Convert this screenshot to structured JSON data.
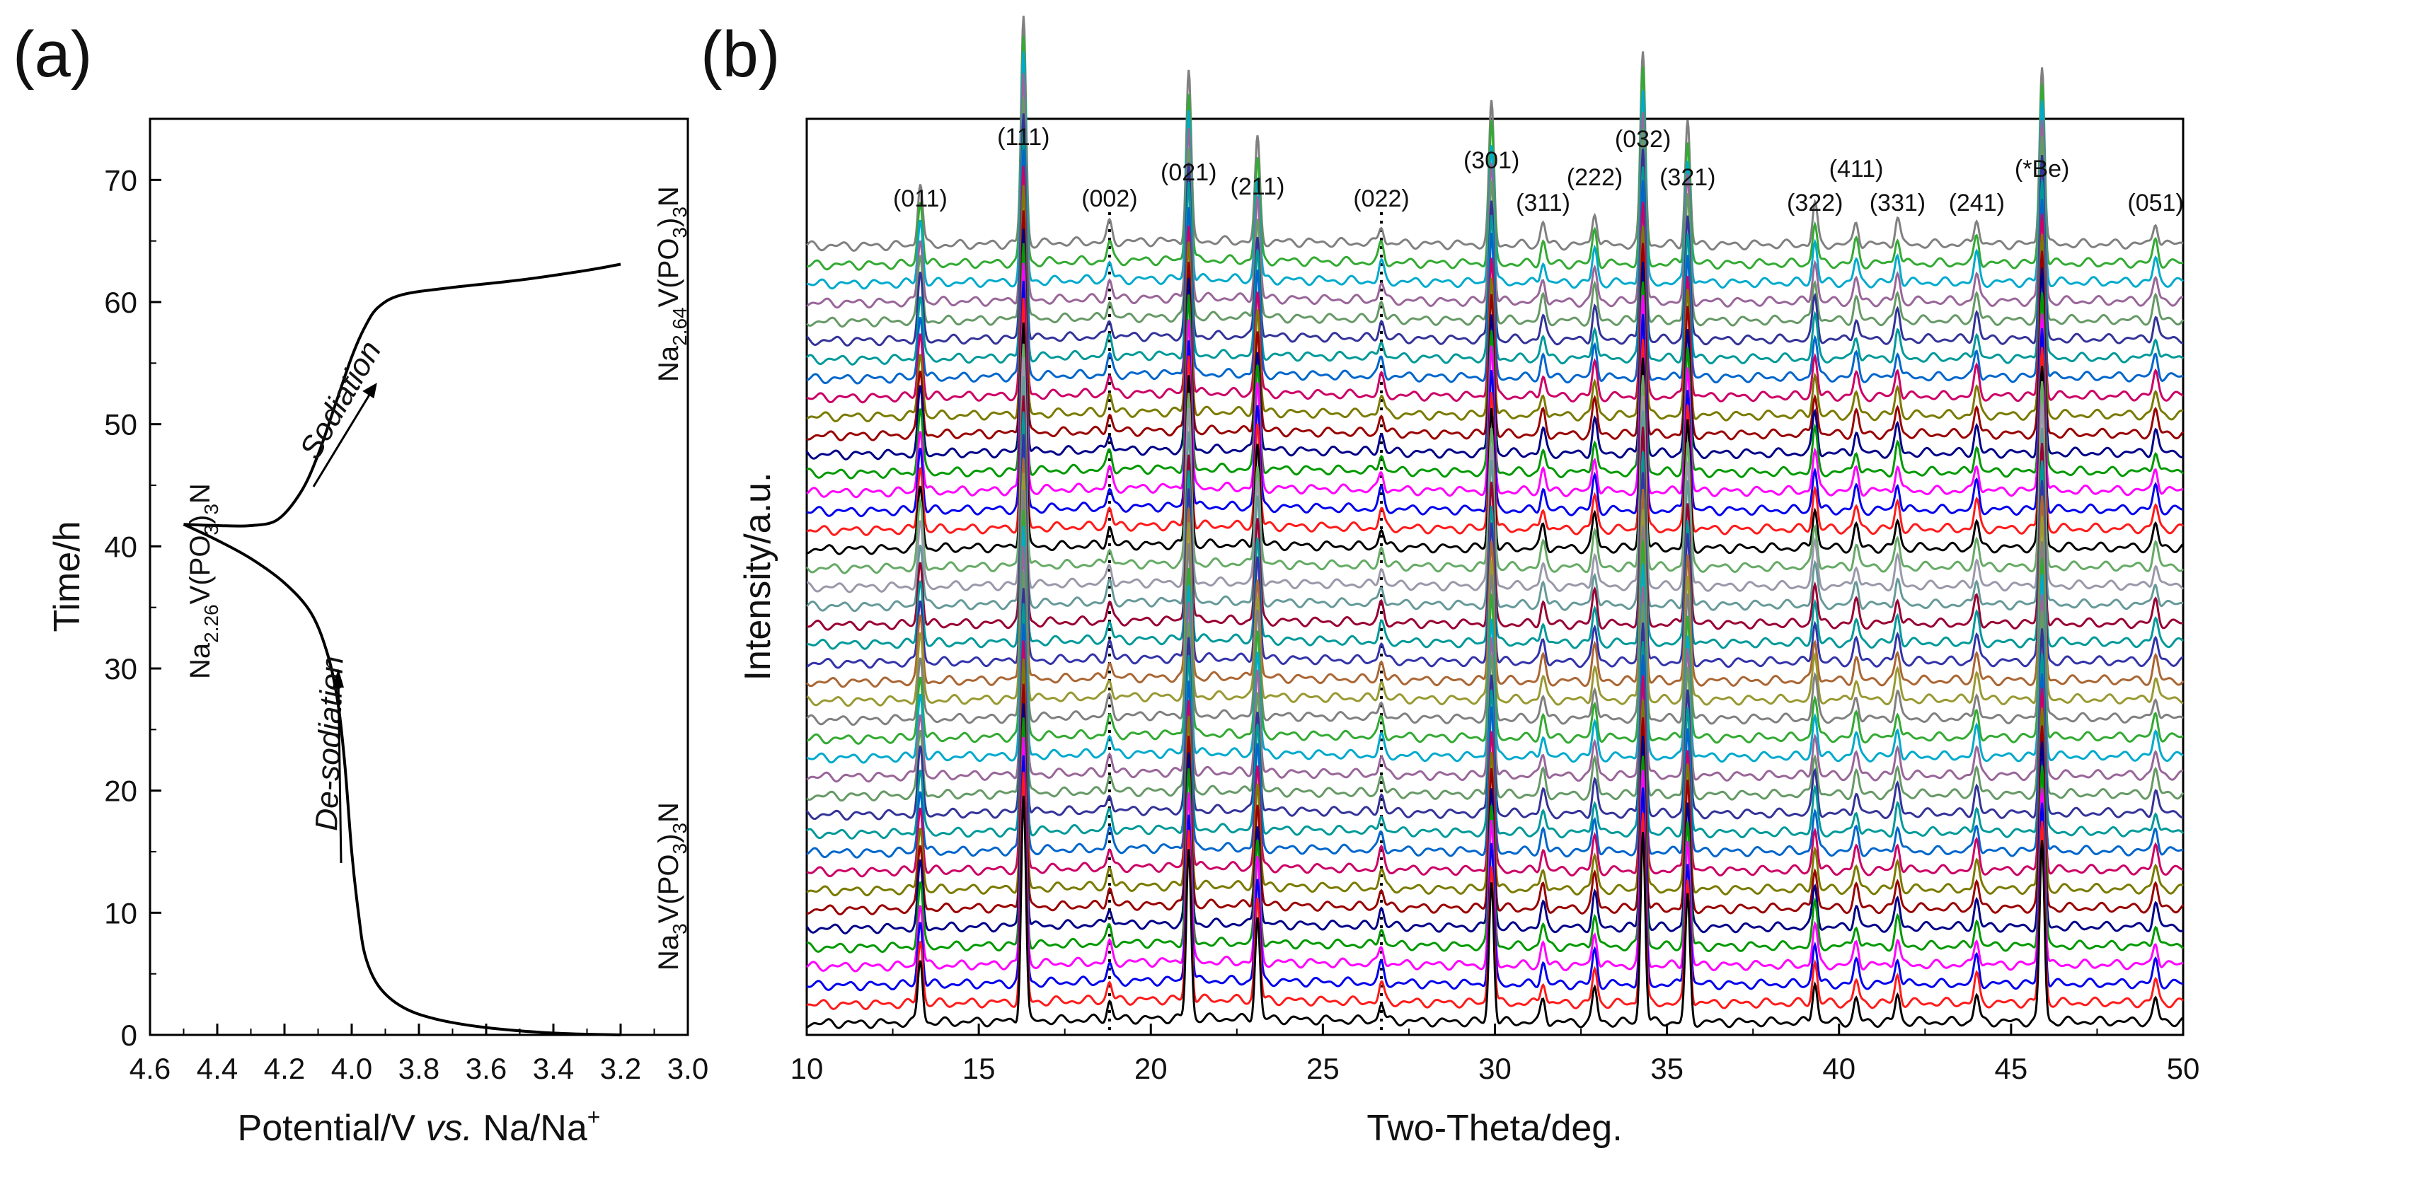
{
  "panels": {
    "a": {
      "label": "(a)",
      "xlabel": {
        "prefix": "Potential/V ",
        "italic": "vs.",
        "suffix": " Na/Na",
        "sup": "+"
      },
      "ylabel": "Time/h",
      "annotations": {
        "sodiation": "Sodiation",
        "desodiation": "De-sodiation",
        "na226": {
          "base": "Na",
          "sub1": "2.26",
          "mid": "V(PO",
          "sub2": "3",
          "mid2": ")",
          "sub3": "3",
          "end": "N"
        },
        "na264": {
          "base": "Na",
          "sub1": "2.64",
          "mid": "V(PO",
          "sub2": "3",
          "mid2": ")",
          "sub3": "3",
          "end": "N"
        },
        "na3": {
          "base": "Na",
          "sub1": "3",
          "mid": "V(PO",
          "sub2": "3",
          "mid2": ")",
          "sub3": "3",
          "end": "N"
        }
      }
    },
    "b": {
      "label": "(b)",
      "xlabel": "Two-Theta/deg.",
      "ylabel": "Intensity/a.u."
    }
  },
  "chart_data": [
    {
      "type": "line",
      "title": "",
      "xlabel": "Potential/V vs. Na/Na+",
      "ylabel": "Time/h",
      "xlim": [
        4.6,
        3.0
      ],
      "ylim": [
        0,
        75
      ],
      "x_reversed": true,
      "x_ticks": [
        4.6,
        4.4,
        4.2,
        4.0,
        3.8,
        3.6,
        3.4,
        3.2,
        3.0
      ],
      "x_tick_labels": [
        "4.6",
        "4.4",
        "4.2",
        "4.0",
        "3.8",
        "3.6",
        "3.4",
        "3.2",
        "3.0"
      ],
      "y_ticks": [
        0,
        10,
        20,
        30,
        40,
        50,
        60,
        70
      ],
      "y_tick_labels": [
        "0",
        "10",
        "20",
        "30",
        "40",
        "50",
        "60",
        "70"
      ],
      "series": [
        {
          "name": "De-sodiation",
          "points": [
            [
              3.2,
              0.0
            ],
            [
              3.4,
              0.15
            ],
            [
              3.6,
              0.6
            ],
            [
              3.75,
              1.3
            ],
            [
              3.85,
              2.3
            ],
            [
              3.92,
              4.0
            ],
            [
              3.96,
              6.5
            ],
            [
              3.98,
              10.0
            ],
            [
              4.0,
              15.0
            ],
            [
              4.02,
              22.0
            ],
            [
              4.04,
              27.0
            ],
            [
              4.07,
              31.0
            ],
            [
              4.12,
              34.5
            ],
            [
              4.2,
              37.0
            ],
            [
              4.3,
              39.0
            ],
            [
              4.4,
              40.5
            ],
            [
              4.5,
              41.8
            ]
          ]
        },
        {
          "name": "Sodiation",
          "points": [
            [
              4.5,
              41.8
            ],
            [
              4.4,
              41.7
            ],
            [
              4.3,
              41.7
            ],
            [
              4.22,
              42.2
            ],
            [
              4.15,
              44.5
            ],
            [
              4.1,
              47.5
            ],
            [
              4.05,
              51.5
            ],
            [
              4.0,
              55.5
            ],
            [
              3.96,
              58.0
            ],
            [
              3.92,
              59.6
            ],
            [
              3.85,
              60.6
            ],
            [
              3.7,
              61.2
            ],
            [
              3.5,
              61.8
            ],
            [
              3.3,
              62.6
            ],
            [
              3.2,
              63.1
            ]
          ]
        }
      ],
      "annotations": [
        {
          "text": "Na2.26V(PO3)3N",
          "x": 4.52,
          "y": 42
        },
        {
          "text": "Na2.64V(PO3)3N",
          "x": 3.2,
          "y": 63
        },
        {
          "text": "Na3V(PO3)3N",
          "x": 3.2,
          "y": 0
        },
        {
          "text": "Sodiation",
          "x": 4.2,
          "y": 52
        },
        {
          "text": "De-sodiation",
          "x": 4.15,
          "y": 20
        }
      ]
    },
    {
      "type": "line",
      "title": "",
      "xlabel": "Two-Theta/deg.",
      "ylabel": "Intensity/a.u.",
      "xlim": [
        10,
        50
      ],
      "x_ticks": [
        10,
        15,
        20,
        25,
        30,
        35,
        40,
        45,
        50
      ],
      "x_tick_labels": [
        "10",
        "15",
        "20",
        "25",
        "30",
        "35",
        "40",
        "45",
        "50"
      ],
      "y_ticks": [],
      "num_patterns": 42,
      "stacked_offset_pattern": true,
      "peaks": [
        {
          "label": "(011)",
          "x": 13.3,
          "height": 0.28
        },
        {
          "label": "(111)",
          "x": 16.3,
          "height": 1.0
        },
        {
          "label": "(002)",
          "x": 18.8,
          "height": 0.08
        },
        {
          "label": "(021)",
          "x": 21.1,
          "height": 0.75
        },
        {
          "label": "(211)",
          "x": 23.1,
          "height": 0.45
        },
        {
          "label": "(022)",
          "x": 26.7,
          "height": 0.08
        },
        {
          "label": "(301)",
          "x": 29.9,
          "height": 0.62
        },
        {
          "label": "(311)",
          "x": 31.4,
          "height": 0.1
        },
        {
          "label": "(222)",
          "x": 32.9,
          "height": 0.15
        },
        {
          "label": "(032)",
          "x": 34.3,
          "height": 0.85
        },
        {
          "label": "(321)",
          "x": 35.6,
          "height": 0.55
        },
        {
          "label": "(322)",
          "x": 39.3,
          "height": 0.18
        },
        {
          "label": "(411)",
          "x": 40.5,
          "height": 0.1
        },
        {
          "label": "(331)",
          "x": 41.7,
          "height": 0.12
        },
        {
          "label": "(241)",
          "x": 44.0,
          "height": 0.12
        },
        {
          "label": "(*Be)",
          "x": 45.9,
          "height": 0.8
        },
        {
          "label": "(051)",
          "x": 49.2,
          "height": 0.1
        }
      ],
      "dotted_markers_x": [
        18.8,
        26.7
      ],
      "series_colors": [
        "#000000",
        "#ff1a1a",
        "#0000ee",
        "#ff00ff",
        "#009900",
        "#000088",
        "#990000",
        "#7a7a00",
        "#cc0066",
        "#0066cc",
        "#009999",
        "#333399",
        "#669966",
        "#996699",
        "#00aacc",
        "#33aa33",
        "#808080",
        "#999933",
        "#aa6633",
        "#3333aa",
        "#009999",
        "#990033",
        "#669999",
        "#9999aa",
        "#66aa66"
      ]
    }
  ]
}
